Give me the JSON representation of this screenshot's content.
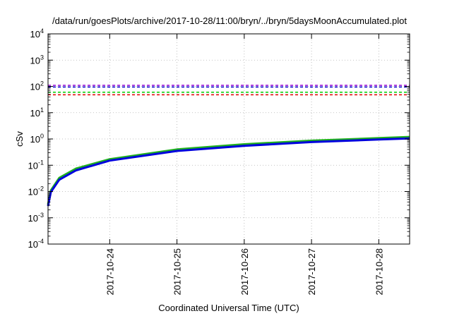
{
  "chart_data": {
    "type": "line",
    "title": "/data/run/goesPlots/archive/2017-10-28/11:00/bryn/../bryn/5daysMoonAccumulated.plot",
    "xlabel": "Coordinated Universal Time (UTC)",
    "ylabel": "cSv",
    "yscale": "log",
    "ylim": [
      0.0001,
      10000
    ],
    "xlim": [
      "2017-10-23T02:00",
      "2017-10-28T11:00"
    ],
    "grid": true,
    "y_ticks": [
      {
        "base": "10",
        "exp": "-4"
      },
      {
        "base": "10",
        "exp": "-3"
      },
      {
        "base": "10",
        "exp": "-2"
      },
      {
        "base": "10",
        "exp": "-1"
      },
      {
        "base": "10",
        "exp": "0"
      },
      {
        "base": "10",
        "exp": "1"
      },
      {
        "base": "10",
        "exp": "2"
      },
      {
        "base": "10",
        "exp": "3"
      },
      {
        "base": "10",
        "exp": "4"
      }
    ],
    "x_ticks": [
      "2017-10-24",
      "2017-10-25",
      "2017-10-26",
      "2017-10-27",
      "2017-10-28"
    ],
    "reference_lines": [
      {
        "value": 110,
        "color": "#9400d3",
        "style": "dashed"
      },
      {
        "value": 95,
        "color": "#0000cc",
        "style": "dashed"
      },
      {
        "value": 60,
        "color": "#00cc00",
        "style": "dashed"
      },
      {
        "value": 48,
        "color": "#dd0000",
        "style": "dashed"
      }
    ],
    "series": [
      {
        "color": "#20b020",
        "x": [
          "2017-10-23T02:00",
          "2017-10-23T03:00",
          "2017-10-23T06:00",
          "2017-10-23T12:00",
          "2017-10-24T00:00",
          "2017-10-25T00:00",
          "2017-10-26T00:00",
          "2017-10-27T00:00",
          "2017-10-28T00:00",
          "2017-10-28T11:00"
        ],
        "y": [
          0.0032,
          0.011,
          0.033,
          0.075,
          0.17,
          0.4,
          0.63,
          0.86,
          1.08,
          1.2
        ]
      },
      {
        "color": "#0000dd",
        "x": [
          "2017-10-23T02:00",
          "2017-10-23T03:00",
          "2017-10-23T06:00",
          "2017-10-23T12:00",
          "2017-10-24T00:00",
          "2017-10-25T00:00",
          "2017-10-26T00:00",
          "2017-10-27T00:00",
          "2017-10-28T00:00",
          "2017-10-28T11:00"
        ],
        "y": [
          0.0028,
          0.0095,
          0.028,
          0.064,
          0.15,
          0.35,
          0.55,
          0.76,
          0.95,
          1.05
        ]
      }
    ]
  }
}
